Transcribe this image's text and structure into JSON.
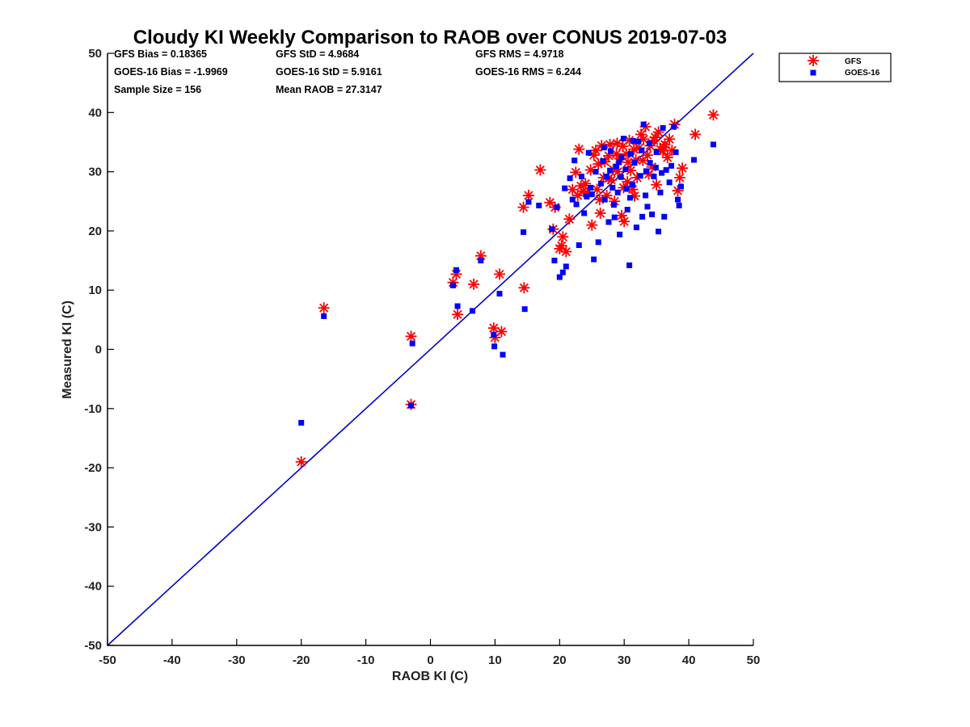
{
  "chart_data": {
    "type": "scatter",
    "title": "Cloudy KI Weekly Comparison to RAOB over CONUS 2019-07-03",
    "xlabel": "RAOB KI (C)",
    "ylabel": "Measured KI (C)",
    "xlim": [
      -50,
      50
    ],
    "ylim": [
      -50,
      50
    ],
    "xticks": [
      "-50",
      "-40",
      "-30",
      "-20",
      "-10",
      "0",
      "10",
      "20",
      "30",
      "40",
      "50"
    ],
    "yticks": [
      "50",
      "40",
      "30",
      "20",
      "10",
      "0",
      "-10",
      "-20",
      "-30",
      "-40",
      "-50"
    ],
    "stats": {
      "gfs_bias": "GFS Bias = 0.18365",
      "gfs_std": "GFS StD = 4.9684",
      "gfs_rms": "GFS RMS = 4.9718",
      "goes_bias": "GOES-16 Bias = -1.9969",
      "goes_std": "GOES-16 StD = 5.9161",
      "goes_rms": "GOES-16 RMS = 6.244",
      "sample_size": "Sample Size = 156",
      "mean_raob": "Mean RAOB = 27.3147"
    },
    "legend": {
      "placement": "outside top-right",
      "entries": [
        "GFS",
        "GOES-16"
      ]
    },
    "one_to_one_line": {
      "x": [
        -50,
        50
      ],
      "y": [
        -50,
        50
      ],
      "color": "#0000cc"
    },
    "series": [
      {
        "name": "GFS",
        "marker": "asterisk",
        "color": "#ff0000",
        "points": [
          [
            -20,
            -19
          ],
          [
            -16.5,
            7
          ],
          [
            -3,
            -9.3
          ],
          [
            -3,
            2.2
          ],
          [
            3.5,
            11.3
          ],
          [
            4,
            12.7
          ],
          [
            4.2,
            5.9
          ],
          [
            6.7,
            11
          ],
          [
            7.8,
            15.8
          ],
          [
            9.8,
            3.6
          ],
          [
            10,
            2
          ],
          [
            10.7,
            12.7
          ],
          [
            11,
            3
          ],
          [
            14.4,
            24
          ],
          [
            14.5,
            10.4
          ],
          [
            15.2,
            26
          ],
          [
            17,
            30.3
          ],
          [
            18.5,
            24.8
          ],
          [
            19,
            20.3
          ],
          [
            19.3,
            24
          ],
          [
            20,
            17
          ],
          [
            20.3,
            17.5
          ],
          [
            20.5,
            19
          ],
          [
            21,
            16.5
          ],
          [
            21.5,
            22
          ],
          [
            22,
            27
          ],
          [
            22.5,
            29.9
          ],
          [
            22.8,
            26
          ],
          [
            23,
            33.8
          ],
          [
            23.3,
            27.6
          ],
          [
            23.7,
            26.7
          ],
          [
            24,
            28
          ],
          [
            24.8,
            30.3
          ],
          [
            25,
            21
          ],
          [
            25.3,
            32.8
          ],
          [
            25.8,
            27
          ],
          [
            26,
            31.3
          ],
          [
            26.3,
            23
          ],
          [
            26.5,
            34.4
          ],
          [
            26.8,
            29
          ],
          [
            27,
            31.7
          ],
          [
            27.3,
            26
          ],
          [
            27.6,
            32.7
          ],
          [
            27.8,
            34.6
          ],
          [
            28,
            28.6
          ],
          [
            28.3,
            30.4
          ],
          [
            28.5,
            25
          ],
          [
            28.8,
            33
          ],
          [
            29,
            30
          ],
          [
            29.3,
            32.2
          ],
          [
            29.6,
            22.6
          ],
          [
            29.8,
            34.3
          ],
          [
            30,
            21.6
          ],
          [
            30.3,
            33
          ],
          [
            30.5,
            28.3
          ],
          [
            30.8,
            35.3
          ],
          [
            31,
            30.2
          ],
          [
            31.3,
            27
          ],
          [
            31.5,
            33.8
          ],
          [
            31.8,
            32
          ],
          [
            32,
            29
          ],
          [
            32.3,
            34
          ],
          [
            32.6,
            36.3
          ],
          [
            33,
            35.5
          ],
          [
            33.3,
            37.6
          ],
          [
            33.6,
            32.8
          ],
          [
            34,
            34.4
          ],
          [
            34.3,
            30.8
          ],
          [
            34.6,
            35.3
          ],
          [
            35,
            27.8
          ],
          [
            35.3,
            36.7
          ],
          [
            35.6,
            33.8
          ],
          [
            36,
            33.5
          ],
          [
            36.3,
            34.6
          ],
          [
            36.7,
            32.4
          ],
          [
            37,
            35.5
          ],
          [
            37.4,
            33.6
          ],
          [
            37.8,
            38
          ],
          [
            38.3,
            26.8
          ],
          [
            38.6,
            29
          ],
          [
            39,
            30.6
          ],
          [
            41,
            36.3
          ],
          [
            43.8,
            39.6
          ],
          [
            26.2,
            25.3
          ],
          [
            33.8,
            29.6
          ],
          [
            29.9,
            27.3
          ],
          [
            34.8,
            35.8
          ],
          [
            24.3,
            26.4
          ],
          [
            27.6,
            28.9
          ],
          [
            32.9,
            31.9
          ],
          [
            28.9,
            34.8
          ],
          [
            36.1,
            34.2
          ],
          [
            30.6,
            31.6
          ],
          [
            25.6,
            33.6
          ],
          [
            31.6,
            25.9
          ]
        ]
      },
      {
        "name": "GOES-16",
        "marker": "square",
        "color": "#0000ff",
        "points": [
          [
            -20,
            -12.4
          ],
          [
            -16.5,
            5.6
          ],
          [
            -3,
            -9.5
          ],
          [
            -2.8,
            1
          ],
          [
            3.5,
            10.8
          ],
          [
            4,
            13.4
          ],
          [
            4.2,
            7.3
          ],
          [
            6.5,
            6.5
          ],
          [
            7.8,
            15
          ],
          [
            9.8,
            2.5
          ],
          [
            9.9,
            0.5
          ],
          [
            10.7,
            9.4
          ],
          [
            11.2,
            -0.9
          ],
          [
            14.4,
            19.8
          ],
          [
            14.6,
            6.8
          ],
          [
            15.2,
            24.9
          ],
          [
            16.8,
            24.3
          ],
          [
            18.8,
            20.3
          ],
          [
            19.2,
            15
          ],
          [
            19.6,
            24
          ],
          [
            20,
            12.2
          ],
          [
            20.5,
            13
          ],
          [
            21,
            14
          ],
          [
            20.8,
            27.2
          ],
          [
            21.6,
            28.9
          ],
          [
            22,
            25.3
          ],
          [
            22.3,
            31.9
          ],
          [
            22.6,
            24.5
          ],
          [
            23,
            17.6
          ],
          [
            23.4,
            29.2
          ],
          [
            23.8,
            23
          ],
          [
            24.2,
            25.8
          ],
          [
            24.5,
            33.2
          ],
          [
            25,
            26.2
          ],
          [
            25.3,
            15.2
          ],
          [
            25.6,
            30
          ],
          [
            26,
            18.1
          ],
          [
            26.4,
            28
          ],
          [
            26.7,
            31.8
          ],
          [
            27,
            25.3
          ],
          [
            27.3,
            29.2
          ],
          [
            27.6,
            21.5
          ],
          [
            27.9,
            33.5
          ],
          [
            28.2,
            27.3
          ],
          [
            28.5,
            22.3
          ],
          [
            28.8,
            30.9
          ],
          [
            29,
            26.5
          ],
          [
            29.3,
            19.4
          ],
          [
            29.6,
            32.4
          ],
          [
            29.9,
            35.6
          ],
          [
            30.2,
            30.4
          ],
          [
            30.5,
            23.6
          ],
          [
            30.8,
            14.2
          ],
          [
            31,
            33
          ],
          [
            31.3,
            27.8
          ],
          [
            31.6,
            31.5
          ],
          [
            31.9,
            20.6
          ],
          [
            32.2,
            35.1
          ],
          [
            32.5,
            29.3
          ],
          [
            32.8,
            22.4
          ],
          [
            33,
            38
          ],
          [
            33.3,
            26
          ],
          [
            33.6,
            24.1
          ],
          [
            34,
            31.5
          ],
          [
            34.3,
            22.8
          ],
          [
            34.6,
            29.2
          ],
          [
            35,
            33.3
          ],
          [
            35.3,
            19.9
          ],
          [
            35.6,
            26.5
          ],
          [
            36,
            37.4
          ],
          [
            36.2,
            22.4
          ],
          [
            36.5,
            30.3
          ],
          [
            37,
            28.2
          ],
          [
            37.3,
            31
          ],
          [
            37.7,
            37.6
          ],
          [
            38,
            33.3
          ],
          [
            38.3,
            25.3
          ],
          [
            38.5,
            24.3
          ],
          [
            38.8,
            27.5
          ],
          [
            40.8,
            32
          ],
          [
            43.8,
            34.6
          ],
          [
            30.4,
            27.1
          ],
          [
            26.9,
            34.1
          ],
          [
            33.4,
            30.1
          ],
          [
            29.2,
            31.6
          ],
          [
            32.7,
            33.6
          ],
          [
            35.8,
            29.8
          ],
          [
            28.4,
            24.4
          ],
          [
            31.4,
            35.2
          ],
          [
            27.8,
            30.2
          ],
          [
            34.9,
            30.7
          ],
          [
            30.9,
            25.6
          ],
          [
            33.9,
            34.8
          ],
          [
            24.8,
            27.3
          ],
          [
            29.5,
            29.1
          ]
        ]
      }
    ]
  }
}
